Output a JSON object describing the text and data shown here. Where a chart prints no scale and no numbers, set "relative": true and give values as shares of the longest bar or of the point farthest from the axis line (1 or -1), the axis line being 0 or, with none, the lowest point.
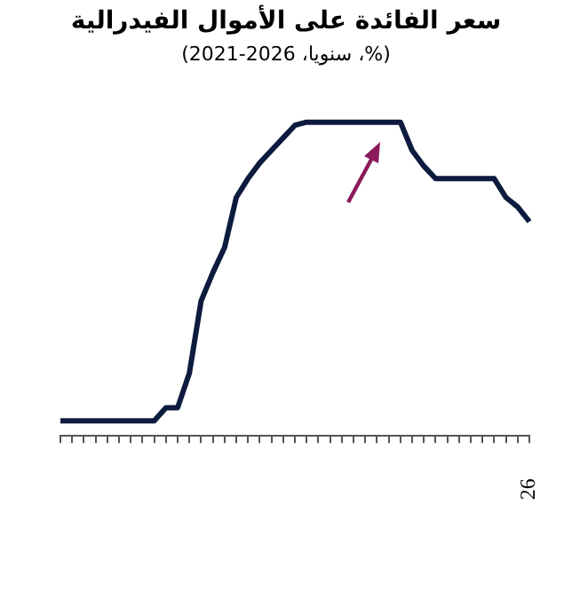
{
  "chart_data": {
    "type": "line",
    "title": "سعر الفائدة على الأموال الفيدرالية",
    "subtitle": "(%، سنويا، 2026-2021)",
    "relative": true,
    "grid": false,
    "legend": false,
    "categories": [
      null,
      null,
      null,
      null,
      null,
      null,
      null,
      null,
      null,
      null,
      null,
      null,
      null,
      null,
      null,
      null,
      null,
      null,
      null,
      null,
      null,
      null,
      null,
      null,
      null,
      null,
      null,
      null,
      null,
      null,
      null,
      null,
      null,
      null,
      null,
      null,
      null,
      null,
      null,
      null,
      null
    ],
    "annotations": [
      "26"
    ],
    "series": [
      {
        "color": "#0d1b3e",
        "values": [
          0.048,
          0.048,
          0.048,
          0.048,
          0.048,
          0.048,
          0.048,
          0.048,
          0.048,
          0.09,
          0.09,
          0.2,
          0.43,
          0.52,
          0.6,
          0.76,
          0.82,
          0.87,
          0.91,
          0.95,
          0.99,
          1,
          1,
          1,
          1,
          1,
          1,
          1,
          1,
          1,
          0.91,
          0.86,
          0.82,
          0.82,
          0.82,
          0.82,
          0.82,
          0.82,
          0.76,
          0.73,
          0.683
        ]
      }
    ]
  }
}
